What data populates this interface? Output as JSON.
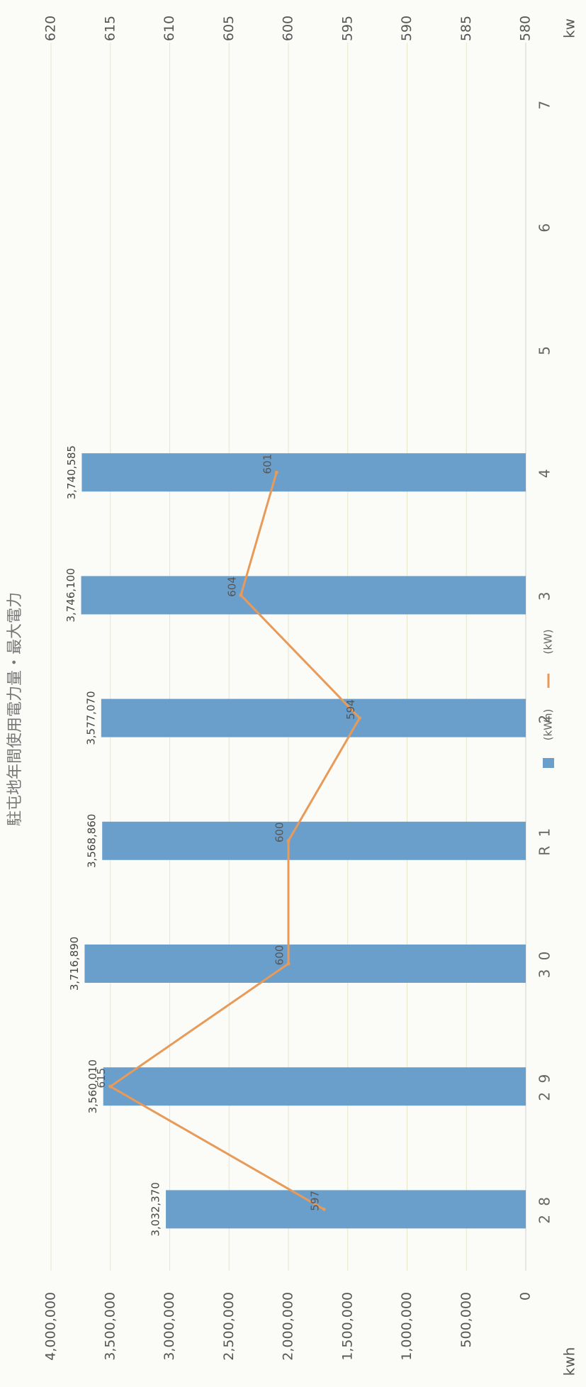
{
  "chart_data": {
    "type": "bar",
    "title": "駐屯地年間使用電力量・最大電力",
    "categories": [
      "2 8",
      "2 9",
      "3 0",
      "R 1",
      "2",
      "3",
      "4",
      "5",
      "6",
      "7"
    ],
    "series": [
      {
        "name": "(kWh)",
        "type": "bar",
        "axis": "left",
        "values": [
          3032370,
          3560010,
          3716890,
          3568860,
          3577070,
          3746100,
          3740585,
          null,
          null,
          null
        ],
        "data_labels": [
          "3,032,370",
          "3,560,010",
          "3,716,890",
          "3,568,860",
          "3,577,070",
          "3,746,100",
          "3,740,585",
          "",
          "",
          ""
        ]
      },
      {
        "name": "(kW)",
        "type": "line",
        "axis": "right",
        "values": [
          597,
          615,
          600,
          600,
          594,
          604,
          601,
          null,
          null,
          null
        ],
        "data_labels": [
          "597",
          "615",
          "600",
          "600",
          "594",
          "604",
          "601",
          "",
          "",
          ""
        ]
      }
    ],
    "left_axis": {
      "unit": "kwh",
      "range": [
        0,
        4000000
      ],
      "ticks": [
        0,
        500000,
        1000000,
        1500000,
        2000000,
        2500000,
        3000000,
        3500000,
        4000000
      ],
      "tick_labels": [
        "0",
        "500,000",
        "1,000,000",
        "1,500,000",
        "2,000,000",
        "2,500,000",
        "3,000,000",
        "3,500,000",
        "4,000,000"
      ]
    },
    "right_axis": {
      "unit": "kw",
      "range": [
        580,
        620
      ],
      "ticks": [
        580,
        585,
        590,
        595,
        600,
        605,
        610,
        615,
        620
      ],
      "tick_labels": [
        "580",
        "585",
        "590",
        "595",
        "600",
        "605",
        "610",
        "615",
        "620"
      ]
    },
    "legend": {
      "placement": "bottom",
      "items": [
        {
          "label": "(kWh)",
          "marker": "bar"
        },
        {
          "label": "(kW)",
          "marker": "line"
        }
      ]
    },
    "orientation": "rotated-90-clockwise",
    "grid": true,
    "colors": {
      "bar": "#6a9fcb",
      "line": "#e89a58",
      "grid": "#e8e6c8",
      "text": "#555555"
    }
  }
}
